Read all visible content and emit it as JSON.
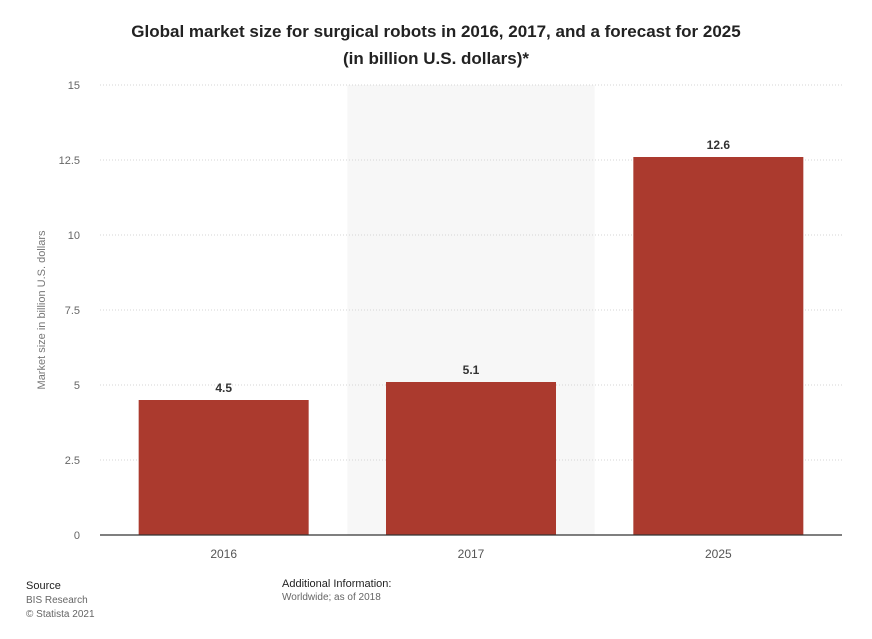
{
  "chart_data": {
    "type": "bar",
    "title": "Global market size for surgical robots in 2016, 2017, and a forecast for 2025",
    "subtitle": "(in billion U.S. dollars)*",
    "xlabel": "",
    "ylabel": "Market size in billion U.S. dollars",
    "categories": [
      "2016",
      "2017",
      "2025"
    ],
    "values": [
      4.5,
      5.1,
      12.6
    ],
    "value_labels": [
      "4.5",
      "5.1",
      "12.6"
    ],
    "ylim": [
      0,
      15
    ],
    "yticks": [
      0,
      2.5,
      5,
      7.5,
      10,
      12.5,
      15
    ],
    "ytick_labels": [
      "0",
      "2.5",
      "5",
      "7.5",
      "10",
      "12.5",
      "15"
    ],
    "grid": true,
    "bar_color": "#ab3a2e",
    "highlight_band_color": "#f7f7f7"
  },
  "footer": {
    "source_label": "Source",
    "source_lines": [
      "BIS Research",
      "© Statista 2021"
    ],
    "info_label": "Additional Information:",
    "info_text": "Worldwide; as of 2018"
  }
}
